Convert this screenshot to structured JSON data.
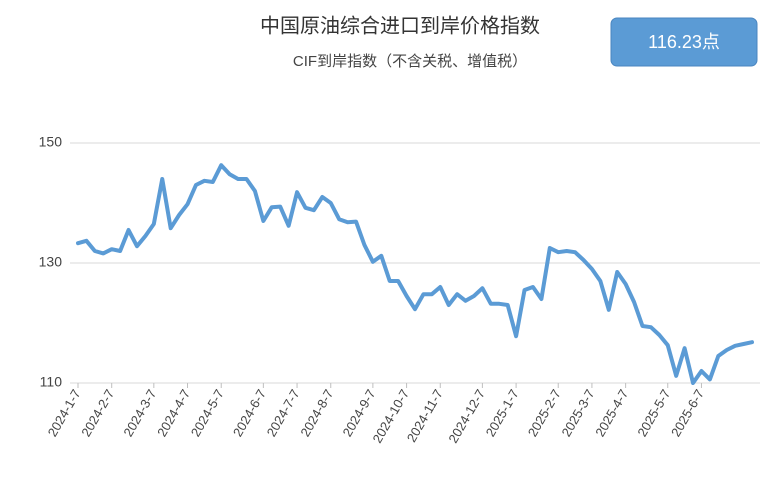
{
  "chart_data": {
    "type": "line",
    "title": "中国原油综合进口到岸价格指数",
    "subtitle": "CIF到岸指数（不含关税、增值税）",
    "annotation": "116.23点",
    "categories": [
      "2024-1-7",
      null,
      null,
      null,
      "2024-2-7",
      null,
      null,
      null,
      null,
      "2024-3-7",
      null,
      null,
      null,
      "2024-4-7",
      null,
      null,
      null,
      "2024-5-7",
      null,
      null,
      null,
      null,
      "2024-6-7",
      null,
      null,
      null,
      "2024-7-7",
      null,
      null,
      null,
      "2024-8-7",
      null,
      null,
      null,
      null,
      "2024-9-7",
      null,
      null,
      null,
      "2024-10-7",
      null,
      null,
      null,
      "2024-11-7",
      null,
      null,
      null,
      null,
      "2024-12-7",
      null,
      null,
      null,
      "2025-1-7",
      null,
      null,
      null,
      null,
      "2025-2-7",
      null,
      null,
      null,
      "2025-3-7",
      null,
      null,
      null,
      "2025-4-7",
      null,
      null,
      null,
      null,
      "2025-5-7",
      null,
      null,
      null,
      "2025-6-7",
      null,
      null,
      null,
      null,
      null,
      null
    ],
    "series": [
      {
        "name": "CIF到岸指数",
        "color": "#5b9bd5",
        "values": [
          133.3,
          133.7,
          132,
          131.6,
          132.3,
          132,
          135.5,
          132.8,
          134.5,
          136.5,
          144,
          135.8,
          138,
          139.8,
          143,
          143.7,
          143.5,
          146.3,
          144.8,
          144,
          144,
          142,
          137,
          139.3,
          139.4,
          136.2,
          141.8,
          139.2,
          138.8,
          141,
          140,
          137.3,
          136.8,
          136.9,
          133,
          130.2,
          131.2,
          127,
          127,
          124.5,
          122.3,
          124.8,
          124.8,
          126,
          123,
          124.8,
          123.7,
          124.5,
          125.8,
          123.2,
          123.2,
          123,
          117.8,
          125.5,
          126,
          124,
          132.5,
          131.8,
          132,
          131.8,
          130.5,
          129,
          127,
          122.2,
          128.5,
          126.5,
          123.5,
          119.5,
          119.3,
          118,
          116.3,
          111.2,
          115.8,
          110,
          112,
          110.6,
          114.5,
          115.5,
          116.2,
          116.5,
          116.8
        ]
      }
    ],
    "ylim": [
      110,
      150
    ],
    "yticks": [
      110,
      130,
      150
    ],
    "grid": true
  }
}
